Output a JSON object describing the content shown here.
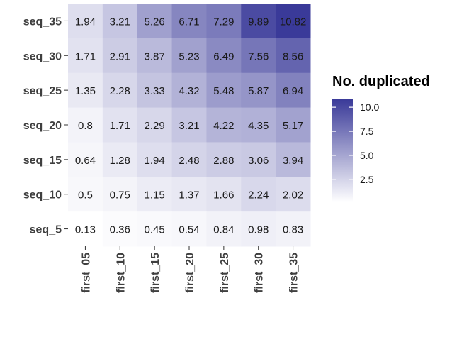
{
  "chart_data": {
    "type": "heatmap",
    "x_categories": [
      "first_05",
      "first_10",
      "first_15",
      "first_20",
      "first_25",
      "first_30",
      "first_35"
    ],
    "y_categories": [
      "seq_35",
      "seq_30",
      "seq_25",
      "seq_20",
      "seq_15",
      "seq_10",
      "seq_5"
    ],
    "values": [
      [
        1.94,
        3.21,
        5.26,
        6.71,
        7.29,
        9.89,
        10.82
      ],
      [
        1.71,
        2.91,
        3.87,
        5.23,
        6.49,
        7.56,
        8.56
      ],
      [
        1.35,
        2.28,
        3.33,
        4.32,
        5.48,
        5.87,
        6.94
      ],
      [
        0.8,
        1.71,
        2.29,
        3.21,
        4.22,
        4.35,
        5.17
      ],
      [
        0.64,
        1.28,
        1.94,
        2.48,
        2.88,
        3.06,
        3.94
      ],
      [
        0.5,
        0.75,
        1.15,
        1.37,
        1.66,
        2.24,
        2.02
      ],
      [
        0.13,
        0.36,
        0.45,
        0.54,
        0.84,
        0.98,
        0.83
      ]
    ],
    "xlabel": "",
    "ylabel": "",
    "legend": {
      "title": "No. duplicated",
      "ticks": [
        2.5,
        5.0,
        7.5,
        10.0
      ],
      "tick_labels": [
        "2.5",
        "5.0",
        "7.5",
        "10.0"
      ],
      "range": [
        0.13,
        10.82
      ],
      "position": "right"
    },
    "colors": {
      "low": "#ffffff",
      "high": "#3a3a99"
    }
  }
}
